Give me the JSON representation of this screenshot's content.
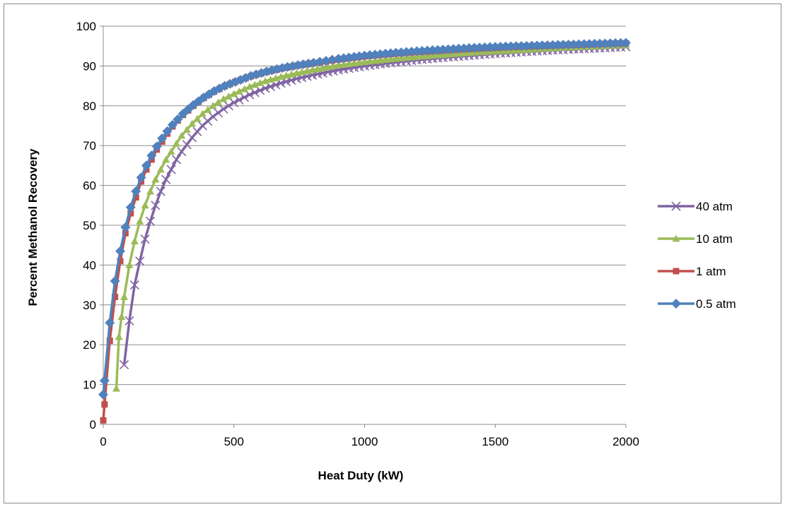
{
  "chart_data": {
    "type": "line",
    "title": "",
    "xlabel": "Heat Duty (kW)",
    "ylabel": "Percent Methanol Recovery",
    "xlim": [
      0,
      2000
    ],
    "ylim": [
      0,
      100
    ],
    "xticks": [
      0,
      500,
      1000,
      1500,
      2000
    ],
    "yticks": [
      0,
      10,
      20,
      30,
      40,
      50,
      60,
      70,
      80,
      90,
      100
    ],
    "grid": "horizontal",
    "legend_position": "right",
    "series": [
      {
        "name": "40 atm",
        "color": "#8064A2",
        "marker": "x",
        "x": [
          80,
          100,
          120,
          140,
          160,
          180,
          200,
          220,
          240,
          260,
          280,
          300,
          340,
          380,
          420,
          460,
          500,
          560,
          620,
          680,
          740,
          800,
          900,
          1000,
          1100,
          1200,
          1300,
          1400,
          1500,
          1600,
          1700,
          1800,
          1900,
          2000
        ],
        "y": [
          15,
          26,
          35,
          41,
          46.5,
          51,
          55,
          58.5,
          61.5,
          64,
          66.5,
          68.5,
          72,
          75,
          77.3,
          79.2,
          80.8,
          82.8,
          84.4,
          85.7,
          86.8,
          87.7,
          89,
          90,
          90.8,
          91.5,
          92.1,
          92.6,
          93.1,
          93.5,
          93.9,
          94.2,
          94.5,
          94.8
        ]
      },
      {
        "name": "10 atm",
        "color": "#9BBB59",
        "marker": "triangle",
        "x": [
          50,
          60,
          70,
          80,
          100,
          120,
          140,
          160,
          180,
          200,
          220,
          240,
          260,
          280,
          300,
          340,
          380,
          420,
          460,
          500,
          560,
          620,
          680,
          740,
          800,
          900,
          1000,
          1100,
          1200,
          1300,
          1400,
          1500,
          1600,
          1700,
          1800,
          1900,
          2000
        ],
        "y": [
          9,
          22,
          27,
          32,
          40,
          46,
          51,
          55,
          58.5,
          61.5,
          64,
          66.5,
          68.5,
          70.5,
          72.5,
          75.5,
          78,
          80,
          81.7,
          83,
          84.8,
          86.2,
          87.3,
          88.2,
          89,
          90.2,
          91,
          91.7,
          92.3,
          92.8,
          93.3,
          93.7,
          94,
          94.4,
          94.7,
          95,
          95.2
        ]
      },
      {
        "name": "1 atm",
        "color": "#C0504D",
        "marker": "square",
        "x": [
          0,
          5,
          25,
          45,
          65,
          85,
          105,
          125,
          145,
          165,
          185,
          205,
          225,
          245,
          265,
          285,
          305,
          345,
          385,
          425,
          465,
          505,
          565,
          625,
          685,
          745,
          805,
          900,
          1000,
          1100,
          1200,
          1300,
          1400,
          1500,
          1600,
          1700,
          1800,
          1900,
          2000
        ],
        "y": [
          1,
          5,
          21,
          32,
          41,
          48,
          53,
          57,
          61,
          64,
          66.5,
          69,
          71,
          73,
          74.8,
          76.3,
          77.7,
          80,
          82,
          83.6,
          84.9,
          86,
          87.4,
          88.5,
          89.4,
          90.1,
          90.7,
          91.6,
          92.4,
          93,
          93.5,
          93.9,
          94.3,
          94.6,
          94.9,
          95.1,
          95.3,
          95.5,
          95.7
        ]
      },
      {
        "name": "0.5 atm",
        "color": "#4F81BD",
        "marker": "diamond",
        "x": [
          0,
          5,
          25,
          45,
          65,
          85,
          105,
          125,
          145,
          165,
          185,
          205,
          225,
          245,
          265,
          285,
          305,
          345,
          385,
          425,
          465,
          505,
          565,
          625,
          685,
          745,
          805,
          900,
          1000,
          1100,
          1200,
          1300,
          1400,
          1500,
          1600,
          1700,
          1800,
          1900,
          2000
        ],
        "y": [
          7.5,
          11,
          25.5,
          36,
          43.5,
          49.5,
          54.5,
          58.5,
          62,
          65,
          67.5,
          69.8,
          71.8,
          73.6,
          75.2,
          76.6,
          78,
          80.2,
          82.1,
          83.7,
          85,
          86,
          87.5,
          88.6,
          89.5,
          90.2,
          90.8,
          91.8,
          92.6,
          93.2,
          93.7,
          94.1,
          94.5,
          94.8,
          95,
          95.2,
          95.4,
          95.6,
          95.8
        ]
      }
    ]
  }
}
